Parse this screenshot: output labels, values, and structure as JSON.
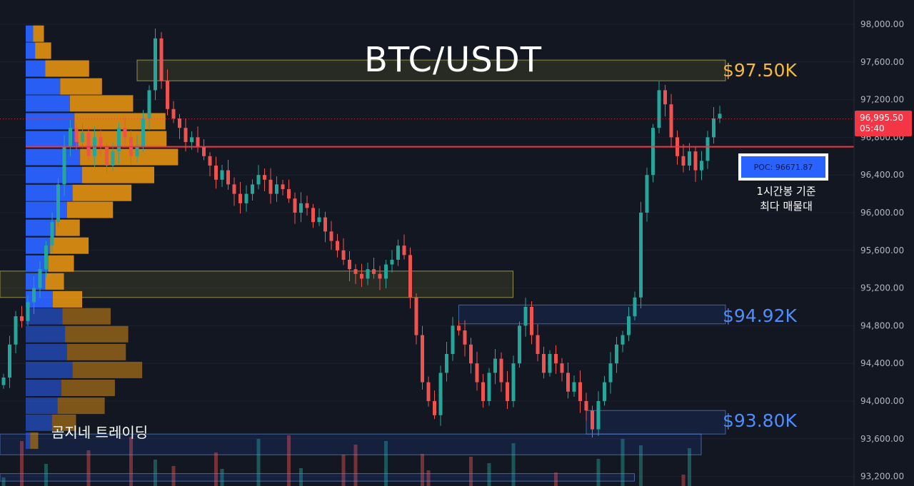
{
  "title": "BTC/USDT",
  "colors": {
    "background": "#131722",
    "up": "#26a69a",
    "down": "#ef5350",
    "profile_up": "#2962ff",
    "profile_down": "#d98b12",
    "resistance_label": "#f5b935",
    "support_label": "#4c8dff",
    "current_line": "#f23645"
  },
  "levels": [
    {
      "label": "$97.50K",
      "price": 97500,
      "color": "#f5b935"
    },
    {
      "label": "$94.92K",
      "price": 94920,
      "color": "#4c8dff"
    },
    {
      "label": "$93.80K",
      "price": 93800,
      "color": "#4c8dff"
    }
  ],
  "poc": {
    "label": "POC: 96671.87",
    "note_line1": "1시간봉 기준",
    "note_line2": "최다 매물대"
  },
  "current_price": {
    "value": "96,995.50",
    "countdown": "05:40"
  },
  "brand": "곰지네 트레이딩",
  "chart_data": {
    "type": "candlestick",
    "symbol": "BTC/USDT",
    "interval": "1h",
    "ylim": [
      93200,
      98000
    ],
    "y_ticks": [
      "98,000.00",
      "97,600.00",
      "97,200.00",
      "96,800.00",
      "96,400.00",
      "96,000.00",
      "95,600.00",
      "95,200.00",
      "94,800.00",
      "94,400.00",
      "94,000.00",
      "93,600.00",
      "93,200.00"
    ],
    "y_tick_values": [
      98000,
      97600,
      97200,
      96800,
      96400,
      96000,
      95600,
      95200,
      94800,
      94400,
      94000,
      93600,
      93200
    ],
    "current_price": 96995.5,
    "poc_price": 96671.87,
    "poc_line_price": 96700,
    "closes": [
      94250,
      94600,
      94900,
      94850,
      95050,
      95200,
      95400,
      95650,
      95900,
      96300,
      96700,
      96900,
      96750,
      96850,
      96600,
      96800,
      96700,
      96500,
      96650,
      96900,
      96800,
      96600,
      96700,
      97000,
      97300,
      97850,
      97400,
      97100,
      97000,
      96900,
      96750,
      96800,
      96700,
      96600,
      96500,
      96350,
      96450,
      96300,
      96200,
      96100,
      96200,
      96300,
      96400,
      96350,
      96200,
      96300,
      96250,
      96150,
      96000,
      96100,
      96050,
      95900,
      95950,
      95800,
      95700,
      95600,
      95500,
      95400,
      95350,
      95300,
      95400,
      95350,
      95300,
      95450,
      95500,
      95650,
      95550,
      95100,
      94700,
      94200,
      94000,
      93850,
      94300,
      94500,
      94800,
      94750,
      94600,
      94400,
      94200,
      94000,
      94300,
      94450,
      94200,
      94000,
      94400,
      94800,
      95000,
      94700,
      94500,
      94300,
      94500,
      94400,
      94300,
      94100,
      94200,
      94000,
      93900,
      93700,
      94000,
      94200,
      94400,
      94600,
      94700,
      94900,
      95100,
      96000,
      96400,
      96900,
      97300,
      97150,
      96800,
      96600,
      96500,
      96650,
      96450,
      96550,
      96800,
      97000,
      97050
    ],
    "volume_profile": {
      "prices": [
        97900,
        97720,
        97530,
        97340,
        97160,
        96970,
        96780,
        96590,
        96400,
        96210,
        96030,
        95840,
        95650,
        95460,
        95270,
        95080,
        94900,
        94710,
        94520,
        94330,
        94140,
        93950,
        93770,
        93580
      ],
      "buy": [
        20,
        25,
        52,
        92,
        118,
        130,
        140,
        145,
        150,
        125,
        110,
        80,
        65,
        60,
        52,
        72,
        98,
        105,
        110,
        125,
        95,
        85,
        70,
        12
      ],
      "sell": [
        20,
        30,
        82,
        78,
        118,
        170,
        165,
        183,
        135,
        110,
        86,
        45,
        72,
        48,
        35,
        55,
        90,
        118,
        110,
        130,
        100,
        88,
        45,
        15
      ]
    },
    "zones": [
      {
        "from": 97400,
        "to": 97620,
        "x_start": 22,
        "x_end": 118,
        "kind": "resistance"
      },
      {
        "from": 95100,
        "to": 95380,
        "x_start": 0,
        "x_end": 83,
        "kind": "resistance"
      },
      {
        "from": 94820,
        "to": 95020,
        "x_start": 75,
        "x_end": 118,
        "kind": "support"
      },
      {
        "from": 93650,
        "to": 93900,
        "x_start": 96,
        "x_end": 118,
        "kind": "support"
      },
      {
        "from": 93430,
        "to": 93650,
        "x_start": 0,
        "x_end": 114,
        "kind": "support"
      },
      {
        "from": 93150,
        "to": 93230,
        "x_start": 0,
        "x_end": 103,
        "kind": "support"
      }
    ]
  }
}
